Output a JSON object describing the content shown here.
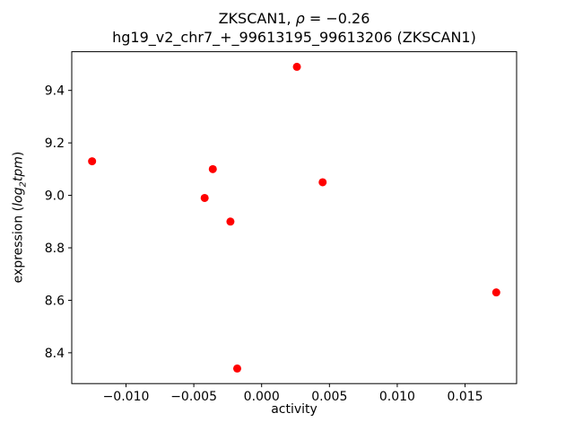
{
  "chart_data": {
    "type": "scatter",
    "title": "ZKSCAN1, ρ = −0.26",
    "title_parts": {
      "pre": "ZKSCAN1, ",
      "sym": "ρ",
      "post": " = −0.26"
    },
    "subtitle": "hg19_v2_chr7_+_99613195_99613206 (ZKSCAN1)",
    "xlabel": "activity",
    "ylabel": "expression (log2tpm)",
    "ylabel_parts": {
      "pre": "expression (",
      "log": "log",
      "sub": "2",
      "tpm": "tpm",
      "post": ")"
    },
    "marker_color": "#ff0000",
    "marker_radius": 4.5,
    "axes_color": "#000000",
    "grid": false,
    "legend": null,
    "xlim": [
      -0.014,
      0.0188
    ],
    "ylim": [
      8.2825,
      9.5475
    ],
    "xtick_values": [
      -0.01,
      -0.005,
      0.0,
      0.005,
      0.01,
      0.015
    ],
    "xtick_labels": [
      "−0.010",
      "−0.005",
      "0.000",
      "0.005",
      "0.010",
      "0.015"
    ],
    "ytick_values": [
      8.4,
      8.6,
      8.8,
      9.0,
      9.2,
      9.4
    ],
    "ytick_labels": [
      "8.4",
      "8.6",
      "8.8",
      "9.0",
      "9.2",
      "9.4"
    ],
    "points": [
      {
        "x": -0.0125,
        "y": 9.13
      },
      {
        "x": -0.0042,
        "y": 8.99
      },
      {
        "x": -0.0036,
        "y": 9.1
      },
      {
        "x": -0.0023,
        "y": 8.9
      },
      {
        "x": -0.0018,
        "y": 8.34
      },
      {
        "x": 0.0026,
        "y": 9.49
      },
      {
        "x": 0.0045,
        "y": 9.05
      },
      {
        "x": 0.0173,
        "y": 8.63
      }
    ]
  }
}
